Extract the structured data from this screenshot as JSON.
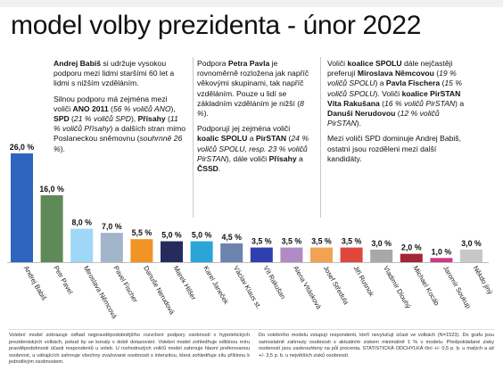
{
  "title": "model volby prezidenta - únor 2022",
  "notes": {
    "col1": {
      "p1": [
        "Andrej Babiš",
        " si udržuje vysokou podporu mezi lidmi staršími 60 let a lidmi s nižším vzděláním."
      ],
      "p2": [
        "Silnou podporu má zejména mezi voliči ",
        "ANO 2011",
        " (",
        "56 % voličů ANO",
        "), ",
        "SPD",
        " (",
        "21 % voličů SPD",
        "), ",
        "Přísahy",
        " (",
        "11 % voličů Přísahy",
        ") a dalších stran mimo Poslaneckou sněmovnu (",
        "souhrnně 26 %",
        ")."
      ]
    },
    "col2": {
      "p1": [
        "Podpora ",
        "Petra Pavla",
        " je rovnoměrně rozložena jak napříč věkovými skupinami, tak napříč vzděláním. Pouze u lidí se základním vzděláním je nižší (",
        "8 %",
        ")."
      ],
      "p2": [
        "Podporují jej zejména voliči ",
        "koalic SPOLU",
        " a ",
        "PirSTAN",
        " (",
        "24 % voličů SPOLU, resp. 23 % voličů PirSTAN",
        "), dále voliči ",
        "Přísahy",
        " a ",
        "ČSSD",
        "."
      ]
    },
    "col3": {
      "p1": [
        "Voliči ",
        "koalice SPOLU",
        " dále nejčastěji preferují ",
        "Miroslava Němcovou",
        " (",
        "19 % voličů SPOLU",
        ") a ",
        "Pavla Fischera",
        " (",
        "15 % voličů SPOLU",
        "). Voliči ",
        "koalice PirSTAN",
        " ",
        "Víta Rakušana",
        " (",
        "16 % voličů PirSTAN",
        ") a ",
        "Danuši Nerudovou",
        " (",
        "12 % voličů PirSTAN",
        ")."
      ],
      "p2": [
        "Mezi voliči SPD dominuje Andrej Babiš, ostatní jsou rozděleni mezi další kandidáty."
      ]
    }
  },
  "footer": {
    "left": "Volební model zobrazuje odhad nejpravděpodobnějšího rozvržení podpory osobností v hypotetických prezidentských volbách, pokud by se konaly v době dotazování. Volební model zohledňuje odlišnou míru pravděpodobnosti účasti respondentů u voleb. U rozhodnutých voličů model zahrnuje hlavní preferovanou osobnost, u váhajících zahrnuje všechny zvažované osobnosti s intenzitou, která zohledňuje sílu příklonu k jednotlivým osobnostem.",
    "right": "Do volebního modelu vstupují respondenti, kteří nevylučují účast ve volbách (N=1523). Do grafu jsou samostatně zahrnuty osobnosti s aktuálním ziskem minimálně 1 % v modelu. Předpokládané zisky osobností jsou zaokrouhleny na půl procenta. STATISTICKÁ ODCHYLKA činí +/- 0,5 p. b. u malých a až +/- 3,5 p. b. u největších zisků osobností."
  },
  "chart_data": {
    "type": "bar",
    "title": "",
    "xlabel": "",
    "ylabel": "",
    "ylim": [
      0,
      26
    ],
    "grid": false,
    "legend": "none",
    "categories": [
      "Andrej Babiš",
      "Petr Pavel",
      "Miroslava Němcová",
      "Pavel Fischer",
      "Danuše Nerudová",
      "Marek Hilšer",
      "Karel Janeček",
      "Václav Klaus st.",
      "Vít Rakušan",
      "Alena Vitásková",
      "Josef Středula",
      "Jiří Rusnok",
      "Vladimír Dlouhý",
      "Michael Kocáb",
      "Jaromír Soukup",
      "Někdo jiný"
    ],
    "values": [
      26.0,
      16.0,
      8.0,
      7.0,
      5.5,
      5.0,
      5.0,
      4.5,
      3.5,
      3.5,
      3.5,
      3.5,
      3.0,
      2.0,
      1.0,
      3.0
    ],
    "labels": [
      "26,0 %",
      "16,0 %",
      "8,0 %",
      "7,0 %",
      "5,5 %",
      "5,0 %",
      "5,0 %",
      "4,5 %",
      "3,5 %",
      "3,5 %",
      "3,5 %",
      "3,5 %",
      "3,0 %",
      "2,0 %",
      "1,0 %",
      "3,0 %"
    ],
    "colors": [
      "#2f64bf",
      "#5e8a58",
      "#9fd7f7",
      "#a2b4c9",
      "#f29326",
      "#252c5d",
      "#2aa5d8",
      "#6c83ad",
      "#303fb0",
      "#b18bc4",
      "#f0a352",
      "#e0473c",
      "#a8a8a8",
      "#a42535",
      "#cc3a88",
      "#c7c7c7"
    ]
  }
}
